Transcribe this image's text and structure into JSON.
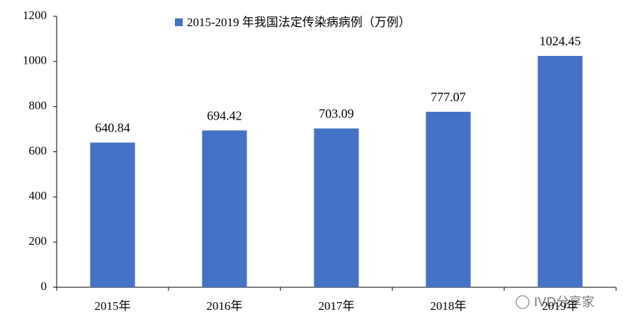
{
  "chart_data": {
    "type": "bar",
    "categories": [
      "2015年",
      "2016年",
      "2017年",
      "2018年",
      "2019年"
    ],
    "series": [
      {
        "name": "2015-2019 年我国法定传染病病例（万例）",
        "color": "#4472c4",
        "values": [
          640.84,
          694.42,
          703.09,
          777.07,
          1024.45
        ]
      }
    ],
    "ylim": [
      0,
      1200
    ],
    "yticks": [
      0,
      200,
      400,
      600,
      800,
      1000,
      1200
    ],
    "grid": false,
    "legend": "top",
    "watermark": "IVD分享家"
  }
}
